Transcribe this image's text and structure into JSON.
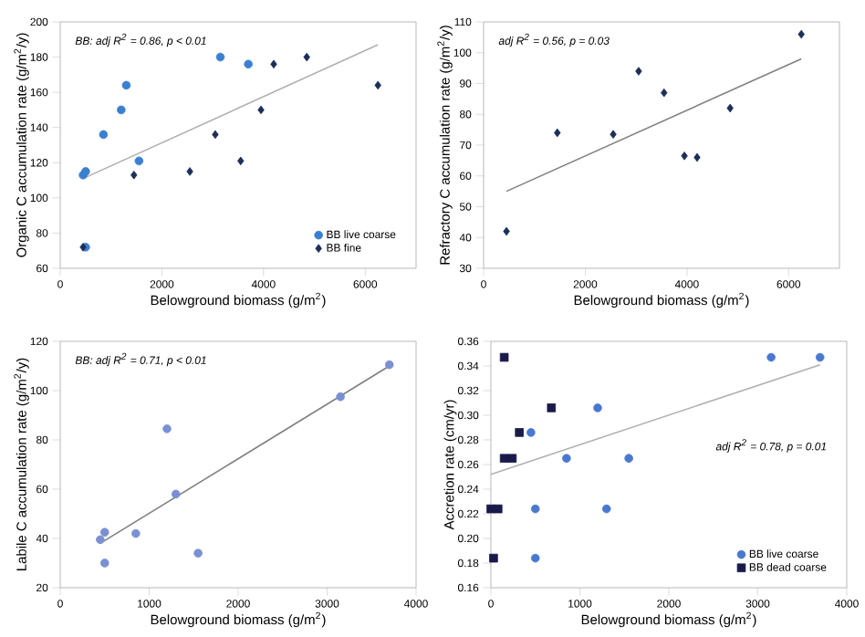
{
  "chart_data": [
    {
      "type": "scatter",
      "xlabel": "Belowground biomass (g/m$^{2}$)",
      "ylabel": "Organic C accumulation rate (g/m$^{2}$/y)",
      "xlim": [
        0,
        7000
      ],
      "xticks": [
        0,
        2000,
        4000,
        6000
      ],
      "ylim": [
        60,
        200
      ],
      "yticks": [
        60,
        80,
        100,
        120,
        140,
        160,
        180,
        200
      ],
      "grid": false,
      "legend": "bottom right",
      "annotations": [
        "BB: adj R$^{2}$ = 0.86, p < 0.01"
      ],
      "series": [
        {
          "name": "BB live coarse",
          "color": "#3a80d2",
          "marker": "circle",
          "x": [
            450,
            500,
            500,
            850,
            1200,
            1300,
            1550,
            3150,
            3700
          ],
          "values": [
            113,
            115,
            72,
            136,
            150,
            164,
            121,
            180,
            176
          ]
        },
        {
          "name": "BB fine",
          "color": "#1c2f5a",
          "marker": "diamond",
          "x": [
            450,
            1450,
            2550,
            3050,
            3550,
            3950,
            4200,
            4850,
            6250
          ],
          "values": [
            72,
            113,
            115,
            136,
            121,
            150,
            176,
            180,
            164
          ]
        },
        {
          "type": "line",
          "color": "#b0b0b0",
          "marker": "none",
          "x": [
            450,
            6250
          ],
          "values": [
            111,
            187
          ]
        }
      ]
    },
    {
      "type": "scatter",
      "xlabel": "Belowground biomass (g/m$^{2}$)",
      "ylabel": "Refractory C accumulation rate (g/m$^{2}$/y)",
      "xlim": [
        0,
        7000
      ],
      "xticks": [
        0,
        2000,
        4000,
        6000
      ],
      "ylim": [
        30,
        110
      ],
      "yticks": [
        30,
        40,
        50,
        60,
        70,
        80,
        90,
        100,
        110
      ],
      "grid": false,
      "annotations": [
        "adj R$^{2}$ = 0.56, p = 0.03"
      ],
      "series": [
        {
          "color": "#1c2f5a",
          "marker": "diamond",
          "x": [
            450,
            1450,
            2550,
            3050,
            3550,
            3950,
            4200,
            4850,
            6250
          ],
          "values": [
            42,
            74,
            73.5,
            94,
            87,
            66.5,
            66,
            82,
            106
          ]
        },
        {
          "type": "line",
          "color": "#808080",
          "marker": "none",
          "x": [
            450,
            6250
          ],
          "values": [
            55,
            98
          ]
        }
      ]
    },
    {
      "type": "scatter",
      "xlabel": "Belowground biomass (g/m$^{2}$)",
      "ylabel": "Labile C accumulation rate (g/m$^{2}$/y)",
      "xlim": [
        0,
        4000
      ],
      "xticks": [
        0,
        1000,
        2000,
        3000,
        4000
      ],
      "ylim": [
        20,
        120
      ],
      "yticks": [
        20,
        40,
        60,
        80,
        100,
        120
      ],
      "grid": false,
      "annotations": [
        "BB: adj R$^{2}$ = 0.71, p < 0.01"
      ],
      "series": [
        {
          "color": "#7b8fd3",
          "marker": "circle",
          "x": [
            450,
            500,
            500,
            850,
            1200,
            1300,
            1550,
            3150,
            3700
          ],
          "values": [
            39.5,
            42.5,
            30,
            42,
            84.5,
            58,
            34,
            97.5,
            110.5
          ]
        },
        {
          "type": "line",
          "color": "#808080",
          "marker": "none",
          "x": [
            450,
            3700
          ],
          "values": [
            38,
            110
          ]
        }
      ]
    },
    {
      "type": "scatter",
      "xlabel": "Belowground biomass (g/m$^{2}$)",
      "ylabel": "Accretion rate (cm/yr)",
      "xlim": [
        0,
        4000
      ],
      "xticks": [
        0,
        1000,
        2000,
        3000,
        4000
      ],
      "ylim": [
        0.16,
        0.36
      ],
      "yticks": [
        0.16,
        0.18,
        {
          "value": 0.2,
          "label": "0.20"
        },
        0.22,
        0.24,
        0.26,
        0.28,
        {
          "value": 0.3,
          "label": "0.30"
        },
        0.32,
        0.34,
        0.36
      ],
      "grid": false,
      "legend": "bottom right",
      "annotations": [
        "adj R$^{2}$ = 0.78, p = 0.01"
      ],
      "series": [
        {
          "name": "BB live coarse",
          "color": "#4a78d0",
          "marker": "circle",
          "x": [
            450,
            500,
            500,
            850,
            1200,
            1300,
            1550,
            3150,
            3700
          ],
          "values": [
            0.286,
            0.224,
            0.184,
            0.265,
            0.306,
            0.224,
            0.265,
            0.347,
            0.347
          ]
        },
        {
          "name": "BB dead coarse",
          "color": "#1a1a4a",
          "marker": "square",
          "x": [
            150,
            680,
            320,
            150,
            240,
            0,
            80,
            30
          ],
          "values": [
            0.347,
            0.306,
            0.286,
            0.265,
            0.265,
            0.224,
            0.224,
            0.184
          ]
        },
        {
          "type": "line",
          "color": "#b0b0b0",
          "marker": "none",
          "x": [
            0,
            3700
          ],
          "values": [
            0.252,
            0.341
          ]
        }
      ]
    }
  ]
}
